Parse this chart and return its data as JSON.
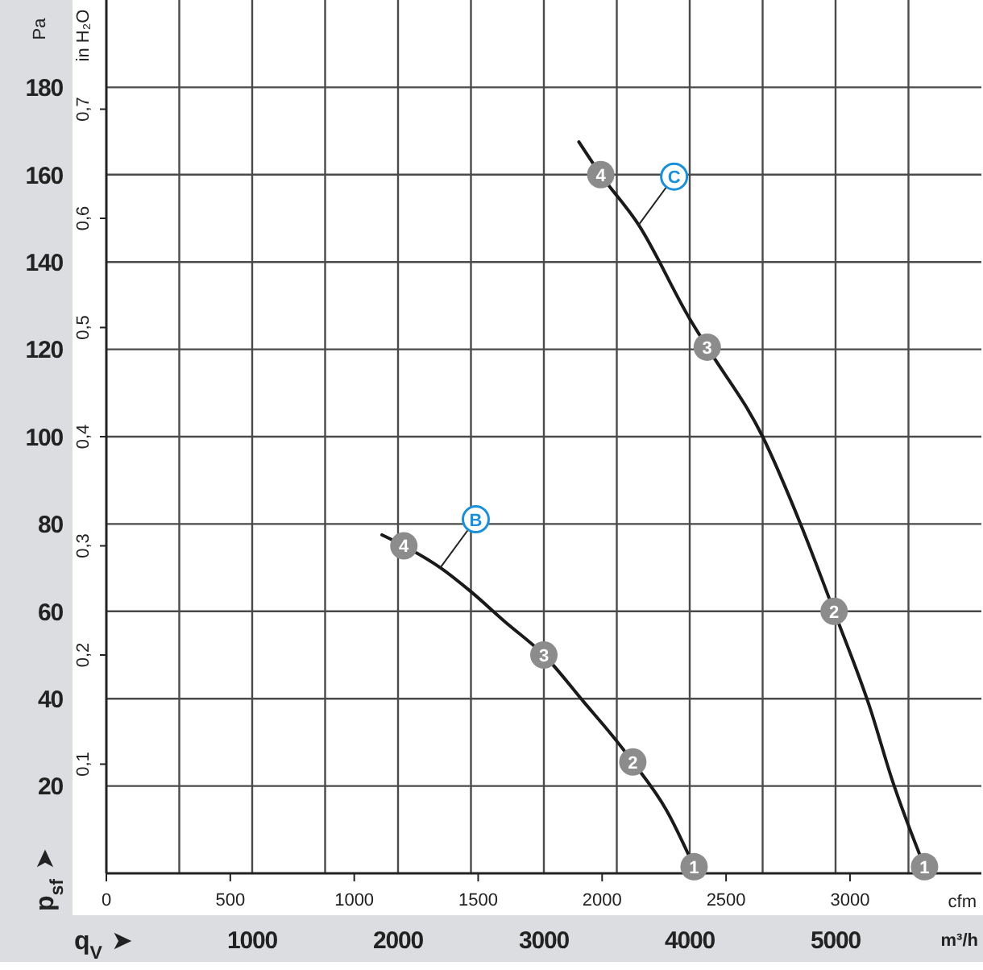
{
  "chart_data": {
    "type": "line",
    "xlabel": "m³/h",
    "x2label": "cfm",
    "ylabel": "Pa",
    "y2label": "in H₂O",
    "xlim": [
      0,
      6000
    ],
    "xticks": [
      {
        "value": 500,
        "label": null
      },
      1000,
      {
        "value": 1500,
        "label": null
      },
      2000,
      {
        "value": 2500,
        "label": null
      },
      3000,
      {
        "value": 3500,
        "label": null
      },
      4000,
      {
        "value": 4500,
        "label": null
      },
      5000,
      {
        "value": 5500,
        "label": null
      }
    ],
    "x2lim": [
      0,
      3530
    ],
    "x2ticks": [
      0,
      500,
      1000,
      1500,
      2000,
      2500,
      3000
    ],
    "ylim": [
      0,
      200
    ],
    "yticks": [
      20,
      40,
      60,
      80,
      100,
      120,
      140,
      160,
      180
    ],
    "y2lim": [
      0,
      0.8
    ],
    "y2ticks": [
      {
        "value": 0.1,
        "label": "0,1"
      },
      {
        "value": 0.2,
        "label": "0,2"
      },
      {
        "value": 0.3,
        "label": "0,3"
      },
      {
        "value": 0.4,
        "label": "0,4"
      },
      {
        "value": 0.5,
        "label": "0,5"
      },
      {
        "value": 0.6,
        "label": "0,6"
      },
      {
        "value": 0.7,
        "label": "0,7"
      }
    ],
    "grid": true,
    "series": [
      {
        "name": "B",
        "color": "#1a1a1a",
        "x": [
          1890,
          2040,
          2290,
          2500,
          2730,
          3000,
          3280,
          3470,
          3610,
          3840,
          4030
        ],
        "values": [
          77.5,
          75,
          70,
          64.5,
          57.7,
          50,
          39,
          31.5,
          25.5,
          14.5,
          1.5
        ]
      },
      {
        "name": "C",
        "color": "#1a1a1a",
        "x": [
          3240,
          3390,
          3650,
          4000,
          4120,
          4500,
          4760,
          4990,
          5240,
          5385,
          5610
        ],
        "values": [
          167.5,
          160,
          148.5,
          127,
          120.5,
          100,
          80,
          60,
          37.5,
          21.7,
          1.5
        ]
      }
    ],
    "annotations": [
      "q$_{V}$ ➤",
      "p$_{sf}$ ➤",
      {
        "text": "4",
        "x": 2040,
        "y": 75
      },
      {
        "text": "3",
        "x": 3000,
        "y": 50
      },
      {
        "text": "2",
        "x": 3610,
        "y": 25.5
      },
      {
        "text": "1",
        "x": 4030,
        "y": 1.5
      },
      {
        "text": "4",
        "x": 3390,
        "y": 160
      },
      {
        "text": "3",
        "x": 4120,
        "y": 120.5
      },
      {
        "text": "2",
        "x": 4990,
        "y": 60
      },
      {
        "text": "1",
        "x": 5610,
        "y": 1.5
      }
    ]
  }
}
